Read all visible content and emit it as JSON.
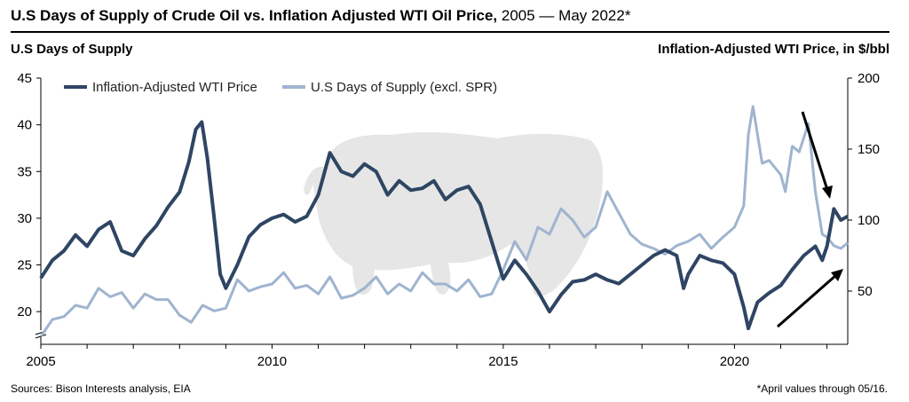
{
  "header": {
    "title_bold": "U.S Days of Supply of Crude Oil vs. Inflation Adjusted WTI Oil Price,",
    "title_rest": " 2005 — May 2022*"
  },
  "footer": {
    "sources": "Sources: Bison Interests analysis, EIA",
    "note": "*April values through 05/16."
  },
  "colors": {
    "wti": "#2e4563",
    "supply": "#9fb4cf",
    "watermark": "#e6e6e6",
    "arrow": "#000000"
  },
  "watermark_icon": "bison-icon",
  "chart_data": {
    "type": "line",
    "ylabel": "U.S Days of Supply",
    "y2label": "Inflation-Adjusted WTI Price, in $/bbl",
    "xlim": [
      2005,
      2022.45
    ],
    "ylim": [
      16.5,
      45
    ],
    "y2lim": [
      12.5,
      200
    ],
    "x_ticks": [
      "2005",
      "2010",
      "2015",
      "2020"
    ],
    "y_ticks": [
      20,
      25,
      30,
      35,
      40,
      45
    ],
    "y2_ticks": [
      50,
      100,
      150,
      200
    ],
    "y_axis_break": true,
    "grid": false,
    "legend_position": "top-left",
    "series": [
      {
        "name": "Inflation-Adjusted WTI Price",
        "axis": "y",
        "points": [
          [
            2005.0,
            23.6
          ],
          [
            2005.25,
            25.5
          ],
          [
            2005.5,
            26.5
          ],
          [
            2005.75,
            28.2
          ],
          [
            2006.0,
            27.0
          ],
          [
            2006.25,
            28.8
          ],
          [
            2006.5,
            29.6
          ],
          [
            2006.75,
            26.5
          ],
          [
            2007.0,
            26.0
          ],
          [
            2007.25,
            27.8
          ],
          [
            2007.5,
            29.2
          ],
          [
            2007.75,
            31.2
          ],
          [
            2008.0,
            32.8
          ],
          [
            2008.2,
            36.0
          ],
          [
            2008.35,
            39.5
          ],
          [
            2008.48,
            40.3
          ],
          [
            2008.6,
            36.5
          ],
          [
            2008.75,
            30.0
          ],
          [
            2008.88,
            24.0
          ],
          [
            2009.0,
            22.5
          ],
          [
            2009.25,
            25.0
          ],
          [
            2009.5,
            28.0
          ],
          [
            2009.75,
            29.3
          ],
          [
            2010.0,
            30.0
          ],
          [
            2010.25,
            30.4
          ],
          [
            2010.5,
            29.6
          ],
          [
            2010.75,
            30.2
          ],
          [
            2011.0,
            32.5
          ],
          [
            2011.25,
            37.0
          ],
          [
            2011.5,
            35.0
          ],
          [
            2011.75,
            34.5
          ],
          [
            2012.0,
            35.8
          ],
          [
            2012.25,
            35.0
          ],
          [
            2012.5,
            32.5
          ],
          [
            2012.75,
            34.0
          ],
          [
            2013.0,
            33.0
          ],
          [
            2013.25,
            33.2
          ],
          [
            2013.5,
            34.0
          ],
          [
            2013.75,
            32.0
          ],
          [
            2014.0,
            33.0
          ],
          [
            2014.25,
            33.4
          ],
          [
            2014.5,
            31.5
          ],
          [
            2014.75,
            27.5
          ],
          [
            2015.0,
            23.5
          ],
          [
            2015.25,
            25.5
          ],
          [
            2015.5,
            24.0
          ],
          [
            2015.75,
            22.2
          ],
          [
            2016.0,
            20.0
          ],
          [
            2016.25,
            21.8
          ],
          [
            2016.5,
            23.2
          ],
          [
            2016.75,
            23.4
          ],
          [
            2017.0,
            24.0
          ],
          [
            2017.25,
            23.4
          ],
          [
            2017.5,
            23.0
          ],
          [
            2017.75,
            24.0
          ],
          [
            2018.0,
            25.0
          ],
          [
            2018.25,
            26.0
          ],
          [
            2018.5,
            26.6
          ],
          [
            2018.75,
            26.0
          ],
          [
            2018.9,
            22.5
          ],
          [
            2019.0,
            24.0
          ],
          [
            2019.25,
            26.0
          ],
          [
            2019.5,
            25.5
          ],
          [
            2019.75,
            25.2
          ],
          [
            2020.0,
            24.0
          ],
          [
            2020.2,
            20.5
          ],
          [
            2020.3,
            18.2
          ],
          [
            2020.5,
            21.0
          ],
          [
            2020.75,
            22.0
          ],
          [
            2021.0,
            22.8
          ],
          [
            2021.25,
            24.5
          ],
          [
            2021.5,
            26.0
          ],
          [
            2021.75,
            27.0
          ],
          [
            2021.9,
            25.5
          ],
          [
            2022.0,
            27.0
          ],
          [
            2022.15,
            31.0
          ],
          [
            2022.3,
            29.8
          ],
          [
            2022.45,
            30.2
          ]
        ]
      },
      {
        "name": "U.S Days of Supply (excl. SPR)",
        "axis": "y2",
        "points": [
          [
            2005.0,
            18
          ],
          [
            2005.25,
            30
          ],
          [
            2005.5,
            32
          ],
          [
            2005.75,
            40
          ],
          [
            2006.0,
            38
          ],
          [
            2006.25,
            52
          ],
          [
            2006.5,
            46
          ],
          [
            2006.75,
            49
          ],
          [
            2007.0,
            38
          ],
          [
            2007.25,
            48
          ],
          [
            2007.5,
            44
          ],
          [
            2007.75,
            44
          ],
          [
            2008.0,
            33
          ],
          [
            2008.25,
            28
          ],
          [
            2008.5,
            40
          ],
          [
            2008.75,
            36
          ],
          [
            2009.0,
            38
          ],
          [
            2009.25,
            58
          ],
          [
            2009.5,
            50
          ],
          [
            2009.75,
            53
          ],
          [
            2010.0,
            55
          ],
          [
            2010.25,
            63
          ],
          [
            2010.5,
            52
          ],
          [
            2010.75,
            54
          ],
          [
            2011.0,
            48
          ],
          [
            2011.25,
            60
          ],
          [
            2011.5,
            45
          ],
          [
            2011.75,
            47
          ],
          [
            2012.0,
            52
          ],
          [
            2012.25,
            60
          ],
          [
            2012.5,
            48
          ],
          [
            2012.75,
            55
          ],
          [
            2013.0,
            50
          ],
          [
            2013.25,
            63
          ],
          [
            2013.5,
            55
          ],
          [
            2013.75,
            55
          ],
          [
            2014.0,
            50
          ],
          [
            2014.25,
            58
          ],
          [
            2014.5,
            46
          ],
          [
            2014.75,
            48
          ],
          [
            2015.0,
            65
          ],
          [
            2015.25,
            85
          ],
          [
            2015.5,
            72
          ],
          [
            2015.75,
            95
          ],
          [
            2016.0,
            90
          ],
          [
            2016.25,
            108
          ],
          [
            2016.5,
            100
          ],
          [
            2016.75,
            88
          ],
          [
            2017.0,
            95
          ],
          [
            2017.25,
            120
          ],
          [
            2017.5,
            105
          ],
          [
            2017.75,
            90
          ],
          [
            2018.0,
            83
          ],
          [
            2018.25,
            80
          ],
          [
            2018.5,
            76
          ],
          [
            2018.75,
            82
          ],
          [
            2019.0,
            85
          ],
          [
            2019.25,
            90
          ],
          [
            2019.5,
            80
          ],
          [
            2019.75,
            88
          ],
          [
            2020.0,
            95
          ],
          [
            2020.2,
            110
          ],
          [
            2020.3,
            160
          ],
          [
            2020.4,
            180
          ],
          [
            2020.6,
            140
          ],
          [
            2020.75,
            142
          ],
          [
            2021.0,
            132
          ],
          [
            2021.1,
            120
          ],
          [
            2021.25,
            152
          ],
          [
            2021.4,
            148
          ],
          [
            2021.6,
            168
          ],
          [
            2021.75,
            120
          ],
          [
            2021.9,
            90
          ],
          [
            2022.0,
            88
          ],
          [
            2022.15,
            82
          ],
          [
            2022.3,
            80
          ],
          [
            2022.45,
            84
          ]
        ]
      }
    ]
  }
}
